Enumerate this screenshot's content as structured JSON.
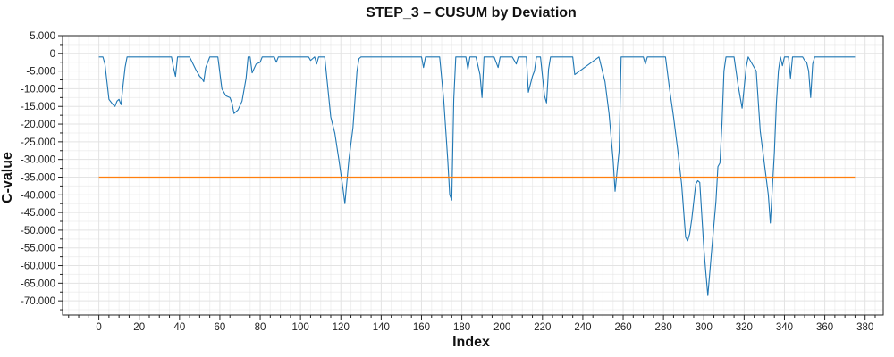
{
  "chart_data": {
    "type": "line",
    "title": "STEP_3 – CUSUM by Deviation",
    "xlabel": "Index",
    "ylabel": "C-value",
    "xlim": [
      -18,
      389
    ],
    "ylim": [
      -74000,
      5000
    ],
    "x_ticks": [
      0,
      20,
      40,
      60,
      80,
      100,
      120,
      140,
      160,
      180,
      200,
      220,
      240,
      260,
      280,
      300,
      320,
      340,
      360,
      380
    ],
    "x_tick_labels": [
      "0",
      "20",
      "40",
      "60",
      "80",
      "100",
      "120",
      "140",
      "160",
      "180",
      "200",
      "220",
      "240",
      "260",
      "280",
      "300",
      "320",
      "340",
      "360",
      "380"
    ],
    "y_ticks": [
      5000,
      0,
      -5000,
      -10000,
      -15000,
      -20000,
      -25000,
      -30000,
      -35000,
      -40000,
      -45000,
      -50000,
      -55000,
      -60000,
      -65000,
      -70000
    ],
    "y_tick_labels": [
      "5.000",
      "0",
      "-5.000",
      "-10.000",
      "-15.000",
      "-20.000",
      "-25.000",
      "-30.000",
      "-35.000",
      "-40.000",
      "-45.000",
      "-50.000",
      "-55.000",
      "-60.000",
      "-65.000",
      "-70.000"
    ],
    "grid": true,
    "series": [
      {
        "color": "#1f77b4",
        "points": [
          [
            0,
            -1000
          ],
          [
            2,
            -1000
          ],
          [
            3,
            -3000
          ],
          [
            5,
            -13000
          ],
          [
            7,
            -14500
          ],
          [
            8,
            -15000
          ],
          [
            9,
            -13500
          ],
          [
            10,
            -13000
          ],
          [
            11,
            -14500
          ],
          [
            12,
            -9000
          ],
          [
            13,
            -4000
          ],
          [
            14,
            -1000
          ],
          [
            36,
            -1000
          ],
          [
            37,
            -4000
          ],
          [
            38,
            -6500
          ],
          [
            39,
            -1000
          ],
          [
            45,
            -1000
          ],
          [
            48,
            -4500
          ],
          [
            50,
            -6500
          ],
          [
            51,
            -7000
          ],
          [
            52,
            -8000
          ],
          [
            53,
            -4000
          ],
          [
            55,
            -1000
          ],
          [
            59,
            -1000
          ],
          [
            61,
            -10000
          ],
          [
            63,
            -12000
          ],
          [
            65,
            -12500
          ],
          [
            66,
            -14000
          ],
          [
            67,
            -17000
          ],
          [
            69,
            -16000
          ],
          [
            71,
            -13500
          ],
          [
            73,
            -7000
          ],
          [
            74,
            -1000
          ],
          [
            75,
            -1000
          ],
          [
            76,
            -5500
          ],
          [
            78,
            -3000
          ],
          [
            80,
            -2500
          ],
          [
            81,
            -1000
          ],
          [
            87,
            -1000
          ],
          [
            88,
            -2500
          ],
          [
            89,
            -1000
          ],
          [
            102,
            -1000
          ],
          [
            104,
            -1000
          ],
          [
            105,
            -2000
          ],
          [
            107,
            -1000
          ],
          [
            108,
            -3000
          ],
          [
            109,
            -1000
          ],
          [
            112,
            -1000
          ],
          [
            115,
            -18000
          ],
          [
            117,
            -22500
          ],
          [
            119,
            -30000
          ],
          [
            121,
            -38000
          ],
          [
            122,
            -42500
          ],
          [
            124,
            -30000
          ],
          [
            126,
            -21000
          ],
          [
            128,
            -5000
          ],
          [
            129,
            -1500
          ],
          [
            130,
            -1000
          ],
          [
            160,
            -1000
          ],
          [
            161,
            -4000
          ],
          [
            162,
            -1000
          ],
          [
            169,
            -1000
          ],
          [
            171,
            -13000
          ],
          [
            173,
            -30000
          ],
          [
            174,
            -40000
          ],
          [
            175,
            -41500
          ],
          [
            176,
            -13000
          ],
          [
            177,
            -1000
          ],
          [
            182,
            -1000
          ],
          [
            183,
            -4500
          ],
          [
            184,
            -1000
          ],
          [
            187,
            -1000
          ],
          [
            189,
            -6000
          ],
          [
            190,
            -12500
          ],
          [
            191,
            -1000
          ],
          [
            196,
            -1000
          ],
          [
            198,
            -4000
          ],
          [
            199,
            -1000
          ],
          [
            205,
            -1000
          ],
          [
            207,
            -3000
          ],
          [
            208,
            -1000
          ],
          [
            212,
            -1000
          ],
          [
            213,
            -11000
          ],
          [
            215,
            -6500
          ],
          [
            216,
            -5000
          ],
          [
            217,
            -1000
          ],
          [
            219,
            -1000
          ],
          [
            221,
            -12000
          ],
          [
            222,
            -14000
          ],
          [
            223,
            -4500
          ],
          [
            224,
            -1000
          ],
          [
            233,
            -1000
          ],
          [
            235,
            -1000
          ],
          [
            236,
            -6000
          ],
          [
            248,
            -1000
          ],
          [
            251,
            -8000
          ],
          [
            253,
            -17000
          ],
          [
            255,
            -30000
          ],
          [
            256,
            -39000
          ],
          [
            258,
            -27500
          ],
          [
            259,
            -1000
          ],
          [
            270,
            -1000
          ],
          [
            271,
            -3000
          ],
          [
            272,
            -1000
          ],
          [
            281,
            -1000
          ],
          [
            283,
            -10000
          ],
          [
            285,
            -18000
          ],
          [
            287,
            -27000
          ],
          [
            289,
            -37000
          ],
          [
            291,
            -52000
          ],
          [
            292,
            -53000
          ],
          [
            293,
            -51000
          ],
          [
            294,
            -47000
          ],
          [
            296,
            -37000
          ],
          [
            297,
            -36000
          ],
          [
            298,
            -36500
          ],
          [
            300,
            -55000
          ],
          [
            301,
            -62000
          ],
          [
            302,
            -68500
          ],
          [
            304,
            -55000
          ],
          [
            306,
            -42000
          ],
          [
            307,
            -32000
          ],
          [
            308,
            -31000
          ],
          [
            309,
            -20000
          ],
          [
            310,
            -5000
          ],
          [
            311,
            -1000
          ],
          [
            315,
            -1000
          ],
          [
            317,
            -9000
          ],
          [
            319,
            -15500
          ],
          [
            321,
            -4000
          ],
          [
            322,
            -1000
          ],
          [
            326,
            -5000
          ],
          [
            328,
            -22000
          ],
          [
            330,
            -31000
          ],
          [
            332,
            -40000
          ],
          [
            333,
            -48000
          ],
          [
            335,
            -28000
          ],
          [
            336,
            -14000
          ],
          [
            337,
            -5000
          ],
          [
            338,
            -1000
          ],
          [
            339,
            -3500
          ],
          [
            340,
            -1000
          ],
          [
            342,
            -1000
          ],
          [
            343,
            -7000
          ],
          [
            344,
            -1000
          ],
          [
            349,
            -1000
          ],
          [
            350,
            -2000
          ],
          [
            351,
            -2500
          ],
          [
            352,
            -5000
          ],
          [
            353,
            -12500
          ],
          [
            354,
            -3000
          ],
          [
            355,
            -1000
          ],
          [
            375,
            -1000
          ]
        ]
      },
      {
        "color": "#ff7f0e",
        "points": [
          [
            0,
            -35000
          ],
          [
            375,
            -35000
          ]
        ]
      }
    ]
  }
}
